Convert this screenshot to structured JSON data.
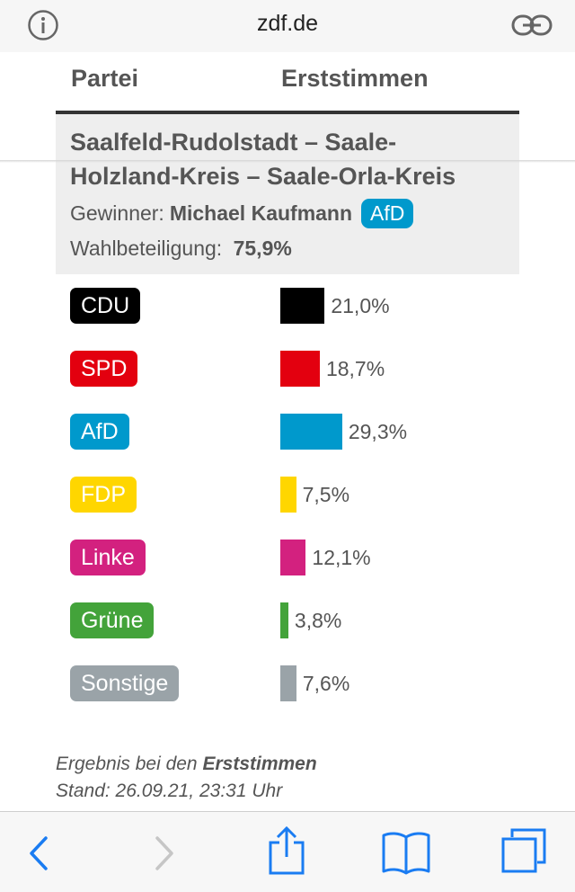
{
  "browser": {
    "domain": "zdf.de",
    "icons": [
      "info-icon",
      "link-icon",
      "back-icon",
      "forward-icon",
      "share-icon",
      "bookmarks-icon",
      "tabs-icon"
    ]
  },
  "table": {
    "col_party": "Partei",
    "col_votes": "Erststimmen"
  },
  "constituency": {
    "title": "Saalfeld-Rudolstadt – Saale-Holzland-Kreis – Saale-Orla-Kreis",
    "winner_label": "Gewinner:",
    "winner_name": "Michael Kaufmann",
    "winner_party": "AfD",
    "winner_party_color": "#0099cc",
    "turnout_label": "Wahlbeteiligung:",
    "turnout_value": "75,9%"
  },
  "results": [
    {
      "party": "CDU",
      "value": 21.0,
      "label": "21,0%",
      "color": "#000000"
    },
    {
      "party": "SPD",
      "value": 18.7,
      "label": "18,7%",
      "color": "#e3000f"
    },
    {
      "party": "AfD",
      "value": 29.3,
      "label": "29,3%",
      "color": "#0099cc"
    },
    {
      "party": "FDP",
      "value": 7.5,
      "label": "7,5%",
      "color": "#ffd600"
    },
    {
      "party": "Linke",
      "value": 12.1,
      "label": "12,1%",
      "color": "#d3217f"
    },
    {
      "party": "Grüne",
      "value": 3.8,
      "label": "3,8%",
      "color": "#43a33a"
    },
    {
      "party": "Sonstige",
      "value": 7.6,
      "label": "7,6%",
      "color": "#9aa3a8"
    }
  ],
  "footer": {
    "result_prefix": "Ergebnis bei den",
    "result_bold": "Erststimmen",
    "stand": "Stand: 26.09.21, 23:31 Uhr"
  }
}
